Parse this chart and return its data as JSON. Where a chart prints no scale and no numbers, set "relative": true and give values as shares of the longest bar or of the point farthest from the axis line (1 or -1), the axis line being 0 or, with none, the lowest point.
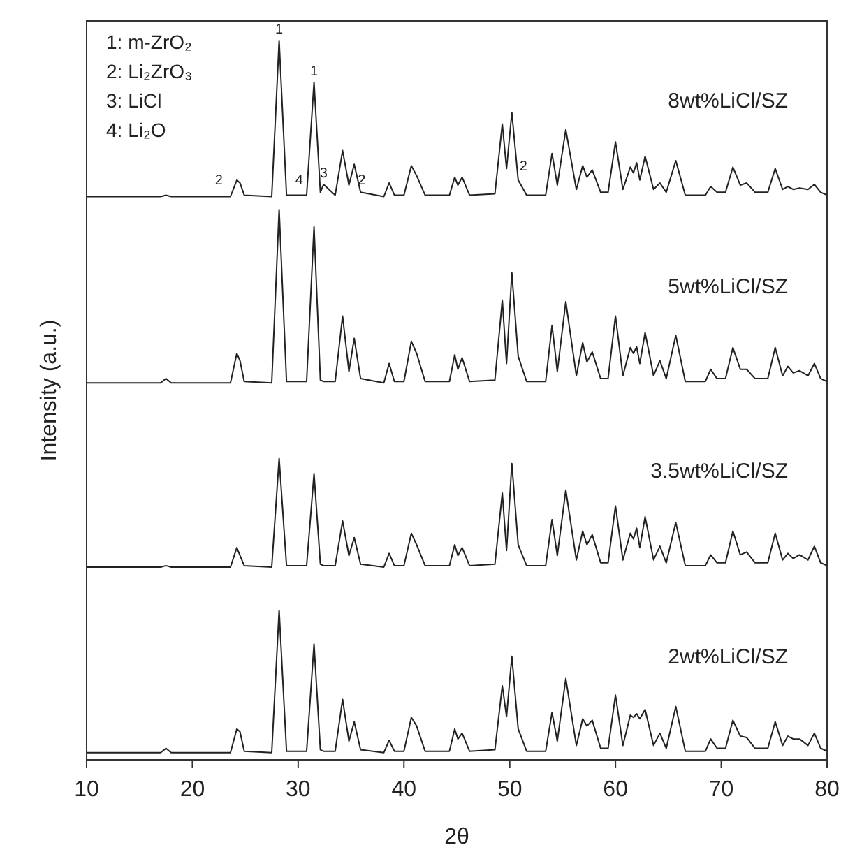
{
  "chart_data": {
    "type": "line",
    "relative": true,
    "xlabel": "2θ",
    "ylabel": "Intensity (a.u.)",
    "xlim": [
      10,
      80
    ],
    "xticks": [
      10,
      20,
      30,
      40,
      50,
      60,
      70,
      80
    ],
    "tick_labels": "x",
    "grid": false,
    "marker": "none",
    "line_style": "solid",
    "x": [
      10,
      17.0,
      17.5,
      18.0,
      23.6,
      24.2,
      24.5,
      24.9,
      27.5,
      28.2,
      28.9,
      30.8,
      31.5,
      32.1,
      32.4,
      33.5,
      34.2,
      34.8,
      35.3,
      35.9,
      38.1,
      38.6,
      39.1,
      40.0,
      40.7,
      41.2,
      42.0,
      44.3,
      44.8,
      45.1,
      45.5,
      46.2,
      48.6,
      49.3,
      49.7,
      50.2,
      50.8,
      51.6,
      53.4,
      54.0,
      54.5,
      55.3,
      56.3,
      56.9,
      57.3,
      57.8,
      58.6,
      59.3,
      60.0,
      60.7,
      61.4,
      61.7,
      62.0,
      62.3,
      62.8,
      63.6,
      64.2,
      64.8,
      65.7,
      66.6,
      68.5,
      69.0,
      69.6,
      70.4,
      71.1,
      71.8,
      72.4,
      73.2,
      74.4,
      75.1,
      75.8,
      76.3,
      76.8,
      77.4,
      78.2,
      78.8,
      79.4,
      80
    ],
    "series": [
      {
        "name": "8wt%LiCl/SZ",
        "color": "#222222",
        "values": [
          0.783,
          0.783,
          0.785,
          0.783,
          0.783,
          0.806,
          0.802,
          0.785,
          0.783,
          1.0,
          0.785,
          0.785,
          0.942,
          0.789,
          0.8,
          0.785,
          0.847,
          0.799,
          0.828,
          0.789,
          0.783,
          0.802,
          0.785,
          0.785,
          0.826,
          0.812,
          0.785,
          0.785,
          0.81,
          0.799,
          0.81,
          0.785,
          0.787,
          0.884,
          0.822,
          0.9,
          0.806,
          0.785,
          0.785,
          0.843,
          0.799,
          0.876,
          0.793,
          0.826,
          0.81,
          0.82,
          0.789,
          0.789,
          0.859,
          0.793,
          0.824,
          0.816,
          0.83,
          0.806,
          0.839,
          0.793,
          0.802,
          0.789,
          0.833,
          0.785,
          0.785,
          0.797,
          0.789,
          0.789,
          0.824,
          0.799,
          0.802,
          0.789,
          0.789,
          0.822,
          0.793,
          0.797,
          0.793,
          0.795,
          0.793,
          0.8,
          0.789,
          0.785
        ]
      },
      {
        "name": "5wt%LiCl/SZ",
        "color": "#222222",
        "values": [
          0.524,
          0.524,
          0.53,
          0.524,
          0.524,
          0.565,
          0.555,
          0.526,
          0.524,
          0.765,
          0.526,
          0.526,
          0.741,
          0.528,
          0.526,
          0.526,
          0.617,
          0.54,
          0.586,
          0.53,
          0.524,
          0.551,
          0.526,
          0.526,
          0.582,
          0.565,
          0.526,
          0.526,
          0.563,
          0.543,
          0.559,
          0.526,
          0.528,
          0.639,
          0.551,
          0.677,
          0.561,
          0.526,
          0.526,
          0.604,
          0.54,
          0.637,
          0.534,
          0.58,
          0.553,
          0.567,
          0.53,
          0.53,
          0.617,
          0.534,
          0.573,
          0.565,
          0.574,
          0.551,
          0.594,
          0.534,
          0.555,
          0.53,
          0.59,
          0.526,
          0.526,
          0.543,
          0.53,
          0.53,
          0.573,
          0.543,
          0.543,
          0.53,
          0.53,
          0.573,
          0.534,
          0.547,
          0.538,
          0.541,
          0.534,
          0.551,
          0.53,
          0.526
        ]
      },
      {
        "name": "3.5wt%LiCl/SZ",
        "color": "#222222",
        "values": [
          0.268,
          0.268,
          0.27,
          0.268,
          0.268,
          0.295,
          0.284,
          0.27,
          0.268,
          0.419,
          0.27,
          0.27,
          0.398,
          0.272,
          0.27,
          0.27,
          0.332,
          0.284,
          0.309,
          0.272,
          0.268,
          0.287,
          0.27,
          0.27,
          0.315,
          0.299,
          0.27,
          0.27,
          0.299,
          0.284,
          0.295,
          0.27,
          0.272,
          0.371,
          0.291,
          0.412,
          0.299,
          0.27,
          0.27,
          0.334,
          0.284,
          0.375,
          0.278,
          0.318,
          0.299,
          0.313,
          0.274,
          0.274,
          0.353,
          0.278,
          0.315,
          0.307,
          0.322,
          0.295,
          0.338,
          0.278,
          0.297,
          0.274,
          0.33,
          0.27,
          0.27,
          0.285,
          0.274,
          0.274,
          0.318,
          0.285,
          0.289,
          0.274,
          0.274,
          0.315,
          0.278,
          0.287,
          0.28,
          0.285,
          0.278,
          0.297,
          0.274,
          0.27
        ]
      },
      {
        "name": "2wt%LiCl/SZ",
        "color": "#222222",
        "values": [
          0.01,
          0.01,
          0.016,
          0.01,
          0.01,
          0.043,
          0.039,
          0.012,
          0.01,
          0.208,
          0.012,
          0.012,
          0.161,
          0.014,
          0.012,
          0.012,
          0.084,
          0.026,
          0.053,
          0.014,
          0.01,
          0.027,
          0.012,
          0.012,
          0.059,
          0.047,
          0.012,
          0.012,
          0.043,
          0.029,
          0.037,
          0.012,
          0.014,
          0.103,
          0.06,
          0.144,
          0.043,
          0.012,
          0.012,
          0.066,
          0.026,
          0.113,
          0.02,
          0.057,
          0.047,
          0.055,
          0.016,
          0.016,
          0.09,
          0.02,
          0.062,
          0.059,
          0.064,
          0.057,
          0.07,
          0.02,
          0.037,
          0.016,
          0.074,
          0.012,
          0.012,
          0.029,
          0.016,
          0.016,
          0.055,
          0.033,
          0.031,
          0.016,
          0.016,
          0.053,
          0.02,
          0.033,
          0.029,
          0.029,
          0.02,
          0.037,
          0.016,
          0.012
        ]
      }
    ],
    "annotations": [
      "1: m-ZrO₂",
      "2: Li₂ZrO₃",
      "3: LiCl",
      "4: Li₂O",
      {
        "text": "1",
        "x": 28.2,
        "y": 1.0
      },
      {
        "text": "1",
        "x": 31.5,
        "y": 0.942
      },
      {
        "text": "2",
        "x": 22.5,
        "y": 0.79
      },
      {
        "text": "4",
        "x": 30.1,
        "y": 0.79
      },
      {
        "text": "3",
        "x": 32.4,
        "y": 0.8
      },
      {
        "text": "2",
        "x": 36.0,
        "y": 0.79
      },
      {
        "text": "2",
        "x": 51.3,
        "y": 0.81
      }
    ]
  }
}
